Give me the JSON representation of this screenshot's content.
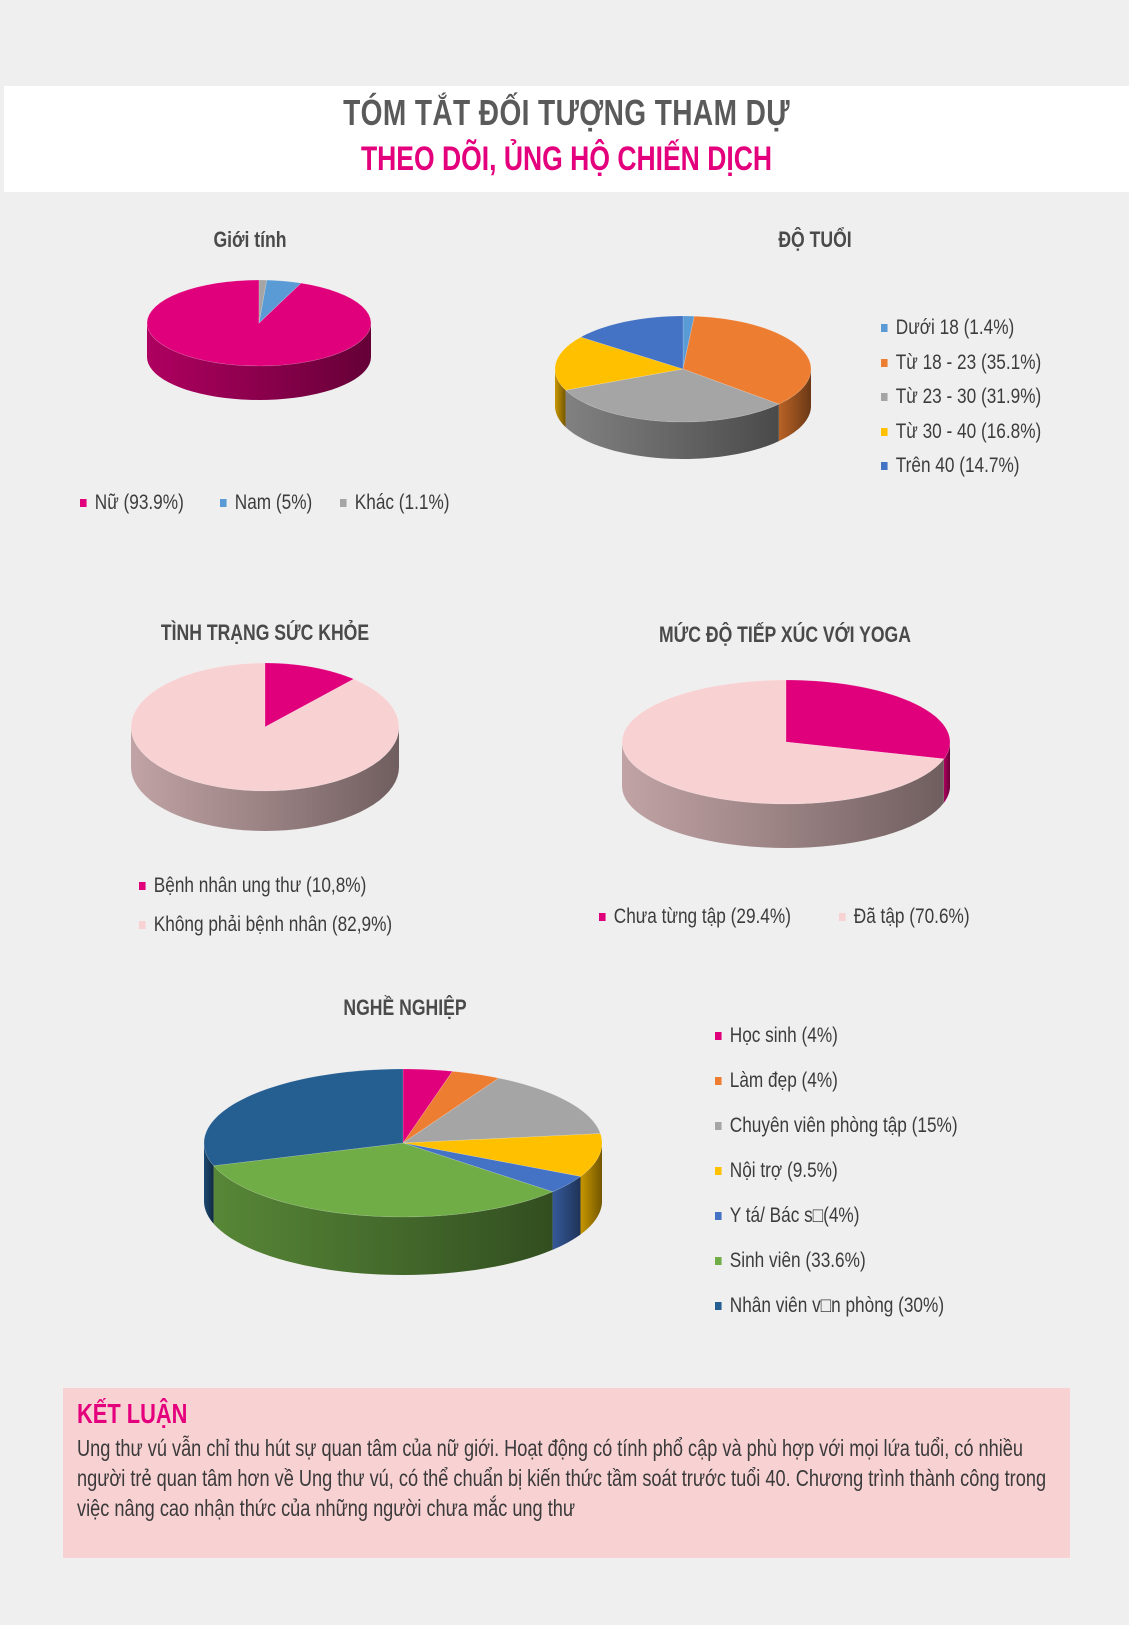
{
  "header": {
    "title_line1": "TÓM TẮT ĐỐI TƯỢNG THAM DỰ",
    "title_line2": "THEO DÕI, ỦNG HỘ CHIẾN DỊCH"
  },
  "chart_data": [
    {
      "type": "pie",
      "title": "Giới tính",
      "categories": [
        "Nữ (93.9%)",
        "Nam (5%)",
        "Khác (1.1%)"
      ],
      "values": [
        93.9,
        5,
        1.1
      ],
      "colors": [
        "#e0007b",
        "#5b9bd5",
        "#a5a5a5"
      ],
      "legend": "bottom"
    },
    {
      "type": "pie",
      "title": "ĐỘ TUỔI",
      "categories": [
        "Dưới 18 (1.4%)",
        "Từ 18 - 23 (35.1%)",
        "Từ 23 - 30 (31.9%)",
        "Từ 30 - 40 (16.8%)",
        "Trên 40 (14.7%)"
      ],
      "values": [
        1.4,
        35.1,
        31.9,
        16.8,
        14.7
      ],
      "colors": [
        "#5b9bd5",
        "#ed7d31",
        "#a5a5a5",
        "#ffc000",
        "#4472c4"
      ],
      "legend": "right"
    },
    {
      "type": "pie",
      "title": "TÌNH TRẠNG SỨC KHỎE",
      "categories": [
        "Bệnh nhân ung thư (10,8%)",
        "Không phải bệnh nhân (82,9%)"
      ],
      "values": [
        10.8,
        82.9
      ],
      "colors": [
        "#e0007b",
        "#f8d1d3"
      ],
      "legend": "bottom"
    },
    {
      "type": "pie",
      "title": "MỨC ĐỘ TIẾP XÚC VỚI YOGA",
      "categories": [
        "Chưa từng tập (29.4%)",
        "Đã tập (70.6%)"
      ],
      "values": [
        29.4,
        70.6
      ],
      "colors": [
        "#e0007b",
        "#f8d1d3"
      ],
      "legend": "bottom"
    },
    {
      "type": "pie",
      "title": "NGHỀ NGHIỆP",
      "categories": [
        "Học sinh (4%)",
        "Làm đẹp (4%)",
        "Chuyên viên phòng tập (15%)",
        "Nội trợ (9.5%)",
        "Y tá/ Bác s□(4%)",
        "Sinh viên (33.6%)",
        "Nhân viên v□n phòng (30%)"
      ],
      "values": [
        4,
        4,
        15,
        9.5,
        4,
        33.6,
        30
      ],
      "colors": [
        "#e0007b",
        "#ed7d31",
        "#a5a5a5",
        "#ffc000",
        "#4472c4",
        "#70ad47",
        "#255e91"
      ],
      "legend": "right"
    }
  ],
  "conclusion": {
    "title": "KẾT LUẬN",
    "text": "Ung thư vú vẫn chỉ thu hút sự quan tâm của nữ giới. Hoạt động có tính phổ cập và phù hợp với mọi lứa tuổi, có nhiều người trẻ quan tâm hơn về Ung thư vú, có thể chuẩn bị kiến thức tầm soát trước tuổi 40. Chương trình thành công trong việc nâng cao nhận thức của những người chưa mắc ung thư"
  }
}
